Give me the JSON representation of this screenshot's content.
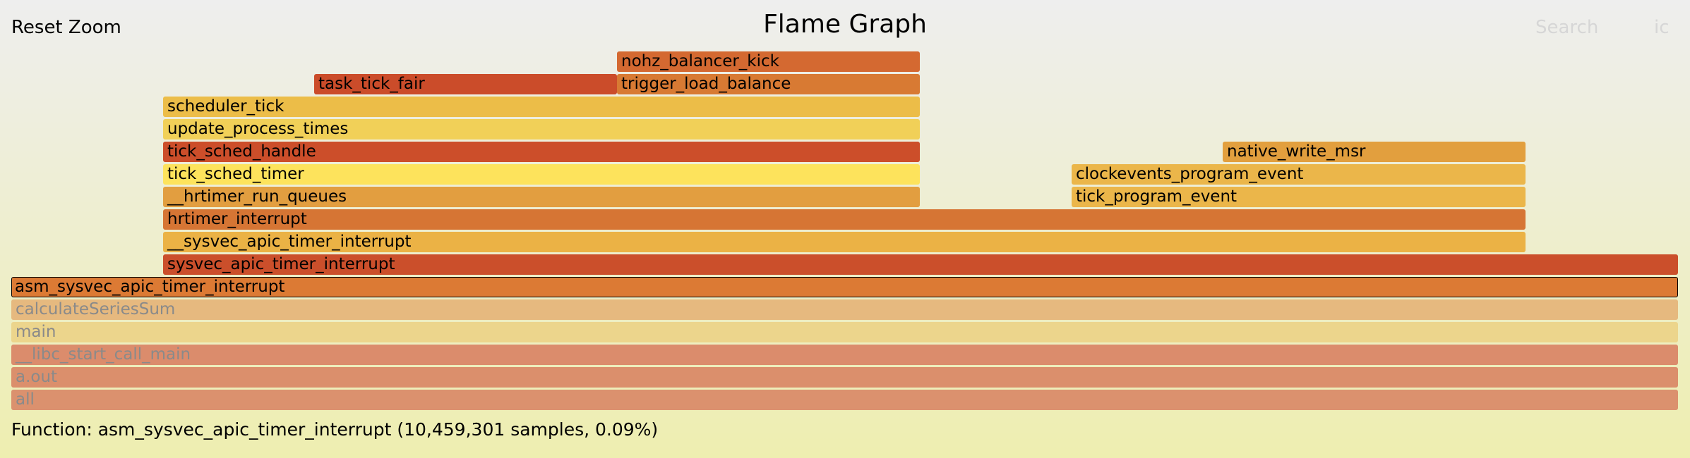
{
  "toolbar": {
    "reset_zoom": "Reset Zoom",
    "title": "Flame Graph",
    "search": "Search",
    "ic": "ic"
  },
  "frames": [
    {
      "name": "nohz_balancer_kick",
      "color": "#d46931",
      "highlighted": true
    },
    {
      "name": "task_tick_fair",
      "color": "#cb4c2a",
      "highlighted": true
    },
    {
      "name": "trigger_load_balance",
      "color": "#d87a33",
      "highlighted": true
    },
    {
      "name": "scheduler_tick",
      "color": "#ecbd48",
      "highlighted": true
    },
    {
      "name": "update_process_times",
      "color": "#f1d058",
      "highlighted": true
    },
    {
      "name": "tick_sched_handle",
      "color": "#cc4e2a",
      "highlighted": true
    },
    {
      "name": "native_write_msr",
      "color": "#e29f3e",
      "highlighted": true
    },
    {
      "name": "tick_sched_timer",
      "color": "#fde35c",
      "highlighted": true
    },
    {
      "name": "clockevents_program_event",
      "color": "#ebb64a",
      "highlighted": true
    },
    {
      "name": "__hrtimer_run_queues",
      "color": "#e29e40",
      "highlighted": true
    },
    {
      "name": "tick_program_event",
      "color": "#ebb64a",
      "highlighted": true
    },
    {
      "name": "hrtimer_interrupt",
      "color": "#d67534",
      "highlighted": true
    },
    {
      "name": "__sysvec_apic_timer_interrupt",
      "color": "#ebb245",
      "highlighted": true
    },
    {
      "name": "sysvec_apic_timer_interrupt",
      "color": "#cb4f2b",
      "highlighted": true
    },
    {
      "name": "asm_sysvec_apic_timer_interrupt",
      "color": "#dc7a34",
      "highlighted": true,
      "selected": true
    },
    {
      "name": "calculateSeriesSum",
      "color": "#e6b97f",
      "highlighted": false
    },
    {
      "name": "main",
      "color": "#ecd58c",
      "highlighted": false
    },
    {
      "name": "__libc_start_call_main",
      "color": "#db8c6c",
      "highlighted": false
    },
    {
      "name": "a.out",
      "color": "#db8f6c",
      "highlighted": false
    },
    {
      "name": "all",
      "color": "#db916e",
      "highlighted": false
    }
  ],
  "details": "Function: asm_sysvec_apic_timer_interrupt (10,459,301 samples, 0.09%)"
}
